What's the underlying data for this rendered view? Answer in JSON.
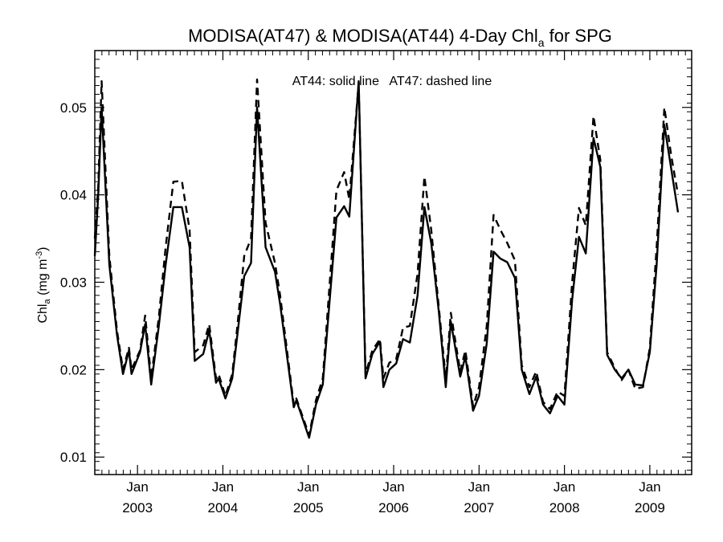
{
  "chart_data": {
    "type": "line",
    "title": {
      "main": "MODISA(AT47) & MODISA(AT44) 4-Day Chl",
      "sub": "a",
      "tail": " for SPG"
    },
    "annotation": "AT44: solid line   AT47: dashed line",
    "ylabel": {
      "base": "Chl",
      "sub": "a",
      "units_open": " (mg m",
      "sup": "-3",
      "units_close": ")"
    },
    "xlim": [
      2002.5,
      2009.49
    ],
    "ylim": [
      0.008,
      0.0565
    ],
    "xticks": [
      {
        "x": 2003.0,
        "month": "Jan",
        "year": "2003"
      },
      {
        "x": 2004.0,
        "month": "Jan",
        "year": "2004"
      },
      {
        "x": 2005.0,
        "month": "Jan",
        "year": "2005"
      },
      {
        "x": 2006.0,
        "month": "Jan",
        "year": "2006"
      },
      {
        "x": 2007.0,
        "month": "Jan",
        "year": "2007"
      },
      {
        "x": 2008.0,
        "month": "Jan",
        "year": "2008"
      },
      {
        "x": 2009.0,
        "month": "Jan",
        "year": "2009"
      }
    ],
    "yticks": [
      {
        "v": 0.01,
        "label": "0.01"
      },
      {
        "v": 0.02,
        "label": "0.02"
      },
      {
        "v": 0.03,
        "label": "0.03"
      },
      {
        "v": 0.04,
        "label": "0.04"
      },
      {
        "v": 0.05,
        "label": "0.05"
      }
    ],
    "series": [
      {
        "name": "AT44",
        "style": "solid",
        "points": [
          [
            2002.5,
            0.033
          ],
          [
            2002.54,
            0.04
          ],
          [
            2002.58,
            0.05
          ],
          [
            2002.67,
            0.032
          ],
          [
            2002.76,
            0.024
          ],
          [
            2002.83,
            0.0195
          ],
          [
            2002.9,
            0.0222
          ],
          [
            2002.93,
            0.0195
          ],
          [
            2003.03,
            0.022
          ],
          [
            2003.09,
            0.0252
          ],
          [
            2003.16,
            0.0183
          ],
          [
            2003.25,
            0.025
          ],
          [
            2003.33,
            0.032
          ],
          [
            2003.42,
            0.0386
          ],
          [
            2003.52,
            0.0386
          ],
          [
            2003.61,
            0.034
          ],
          [
            2003.67,
            0.021
          ],
          [
            2003.77,
            0.0218
          ],
          [
            2003.84,
            0.0245
          ],
          [
            2003.92,
            0.0185
          ],
          [
            2003.95,
            0.019
          ],
          [
            2004.03,
            0.0167
          ],
          [
            2004.11,
            0.019
          ],
          [
            2004.17,
            0.024
          ],
          [
            2004.25,
            0.0307
          ],
          [
            2004.33,
            0.0322
          ],
          [
            2004.4,
            0.05
          ],
          [
            2004.5,
            0.034
          ],
          [
            2004.61,
            0.0312
          ],
          [
            2004.67,
            0.0275
          ],
          [
            2004.83,
            0.0157
          ],
          [
            2004.86,
            0.0165
          ],
          [
            2005.01,
            0.0122
          ],
          [
            2005.09,
            0.016
          ],
          [
            2005.17,
            0.0183
          ],
          [
            2005.33,
            0.0374
          ],
          [
            2005.42,
            0.0387
          ],
          [
            2005.48,
            0.0375
          ],
          [
            2005.59,
            0.053
          ],
          [
            2005.67,
            0.019
          ],
          [
            2005.75,
            0.0218
          ],
          [
            2005.84,
            0.0232
          ],
          [
            2005.88,
            0.018
          ],
          [
            2005.95,
            0.02
          ],
          [
            2006.03,
            0.0207
          ],
          [
            2006.11,
            0.0235
          ],
          [
            2006.19,
            0.0231
          ],
          [
            2006.28,
            0.0285
          ],
          [
            2006.36,
            0.0386
          ],
          [
            2006.44,
            0.0345
          ],
          [
            2006.53,
            0.0265
          ],
          [
            2006.61,
            0.018
          ],
          [
            2006.67,
            0.0255
          ],
          [
            2006.78,
            0.0192
          ],
          [
            2006.84,
            0.0215
          ],
          [
            2006.93,
            0.0153
          ],
          [
            2007.0,
            0.017
          ],
          [
            2007.09,
            0.023
          ],
          [
            2007.17,
            0.0335
          ],
          [
            2007.25,
            0.0327
          ],
          [
            2007.33,
            0.0323
          ],
          [
            2007.42,
            0.0305
          ],
          [
            2007.5,
            0.02
          ],
          [
            2007.59,
            0.0172
          ],
          [
            2007.67,
            0.0192
          ],
          [
            2007.75,
            0.016
          ],
          [
            2007.83,
            0.015
          ],
          [
            2007.92,
            0.017
          ],
          [
            2008.0,
            0.016
          ],
          [
            2008.09,
            0.028
          ],
          [
            2008.17,
            0.0352
          ],
          [
            2008.25,
            0.0333
          ],
          [
            2008.34,
            0.0465
          ],
          [
            2008.42,
            0.0432
          ],
          [
            2008.5,
            0.0217
          ],
          [
            2008.59,
            0.02
          ],
          [
            2008.67,
            0.019
          ],
          [
            2008.75,
            0.02
          ],
          [
            2008.83,
            0.0183
          ],
          [
            2008.92,
            0.0182
          ],
          [
            2009.0,
            0.022
          ],
          [
            2009.08,
            0.032
          ],
          [
            2009.17,
            0.048
          ],
          [
            2009.25,
            0.043
          ],
          [
            2009.33,
            0.038
          ]
        ]
      },
      {
        "name": "AT47",
        "style": "dashed",
        "points": [
          [
            2002.5,
            0.035
          ],
          [
            2002.54,
            0.041
          ],
          [
            2002.58,
            0.053
          ],
          [
            2002.67,
            0.033
          ],
          [
            2002.76,
            0.0245
          ],
          [
            2002.83,
            0.02
          ],
          [
            2002.9,
            0.0225
          ],
          [
            2002.93,
            0.02
          ],
          [
            2003.03,
            0.0222
          ],
          [
            2003.09,
            0.0262
          ],
          [
            2003.16,
            0.019
          ],
          [
            2003.25,
            0.026
          ],
          [
            2003.33,
            0.034
          ],
          [
            2003.42,
            0.0415
          ],
          [
            2003.52,
            0.0416
          ],
          [
            2003.61,
            0.036
          ],
          [
            2003.67,
            0.022
          ],
          [
            2003.77,
            0.0228
          ],
          [
            2003.84,
            0.0252
          ],
          [
            2003.92,
            0.019
          ],
          [
            2003.95,
            0.0195
          ],
          [
            2004.03,
            0.017
          ],
          [
            2004.11,
            0.0195
          ],
          [
            2004.17,
            0.025
          ],
          [
            2004.25,
            0.033
          ],
          [
            2004.33,
            0.035
          ],
          [
            2004.4,
            0.0532
          ],
          [
            2004.5,
            0.0368
          ],
          [
            2004.61,
            0.0322
          ],
          [
            2004.67,
            0.0285
          ],
          [
            2004.83,
            0.016
          ],
          [
            2004.86,
            0.0167
          ],
          [
            2005.01,
            0.0125
          ],
          [
            2005.09,
            0.0165
          ],
          [
            2005.17,
            0.019
          ],
          [
            2005.33,
            0.0405
          ],
          [
            2005.42,
            0.0426
          ],
          [
            2005.48,
            0.0395
          ],
          [
            2005.59,
            0.0528
          ],
          [
            2005.67,
            0.0195
          ],
          [
            2005.75,
            0.0222
          ],
          [
            2005.84,
            0.0235
          ],
          [
            2005.88,
            0.019
          ],
          [
            2005.95,
            0.0208
          ],
          [
            2006.03,
            0.0212
          ],
          [
            2006.11,
            0.0248
          ],
          [
            2006.19,
            0.025
          ],
          [
            2006.28,
            0.031
          ],
          [
            2006.36,
            0.0421
          ],
          [
            2006.44,
            0.036
          ],
          [
            2006.53,
            0.027
          ],
          [
            2006.61,
            0.019
          ],
          [
            2006.67,
            0.0265
          ],
          [
            2006.78,
            0.0198
          ],
          [
            2006.84,
            0.0222
          ],
          [
            2006.93,
            0.0158
          ],
          [
            2007.0,
            0.018
          ],
          [
            2007.09,
            0.025
          ],
          [
            2007.17,
            0.0377
          ],
          [
            2007.25,
            0.036
          ],
          [
            2007.33,
            0.0345
          ],
          [
            2007.42,
            0.0325
          ],
          [
            2007.5,
            0.0205
          ],
          [
            2007.59,
            0.018
          ],
          [
            2007.67,
            0.0198
          ],
          [
            2007.75,
            0.0163
          ],
          [
            2007.83,
            0.0155
          ],
          [
            2007.92,
            0.0175
          ],
          [
            2008.0,
            0.017
          ],
          [
            2008.09,
            0.03
          ],
          [
            2008.17,
            0.0385
          ],
          [
            2008.25,
            0.0365
          ],
          [
            2008.34,
            0.049
          ],
          [
            2008.42,
            0.044
          ],
          [
            2008.5,
            0.022
          ],
          [
            2008.59,
            0.0202
          ],
          [
            2008.67,
            0.0188
          ],
          [
            2008.75,
            0.02
          ],
          [
            2008.83,
            0.0178
          ],
          [
            2008.92,
            0.018
          ],
          [
            2009.0,
            0.0225
          ],
          [
            2009.08,
            0.034
          ],
          [
            2009.17,
            0.05
          ],
          [
            2009.25,
            0.0445
          ],
          [
            2009.33,
            0.04
          ]
        ]
      }
    ]
  }
}
